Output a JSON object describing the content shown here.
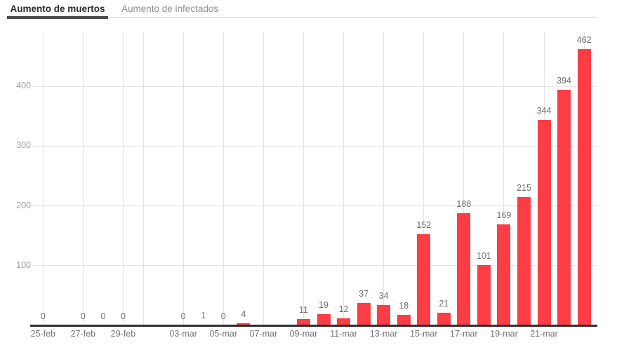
{
  "tabs": [
    {
      "label": "Aumento de muertos",
      "active": true
    },
    {
      "label": "Aumento de infectados",
      "active": false
    }
  ],
  "chart_data": {
    "type": "bar",
    "title": "Aumento de muertos",
    "xlabel": "",
    "ylabel": "",
    "x": [
      "25-feb",
      "27-feb",
      "28-feb",
      "29-feb",
      "03-mar",
      "04-mar",
      "05-mar",
      "06-mar",
      "09-mar",
      "10-mar",
      "11-mar",
      "12-mar",
      "13-mar",
      "14-mar",
      "15-mar",
      "16-mar",
      "17-mar",
      "18-mar",
      "19-mar",
      "20-mar",
      "21-mar",
      "22-mar",
      "23-mar"
    ],
    "values": [
      0,
      0,
      0,
      0,
      0,
      1,
      0,
      4,
      11,
      19,
      12,
      37,
      34,
      18,
      152,
      21,
      188,
      101,
      169,
      215,
      344,
      394,
      462
    ],
    "x_tick_labels": [
      "25-feb",
      "27-feb",
      "29-feb",
      "03-mar",
      "05-mar",
      "07-mar",
      "09-mar",
      "11-mar",
      "13-mar",
      "15-mar",
      "17-mar",
      "19-mar",
      "21-mar"
    ],
    "unlabeled_gridline_dates": [
      "01-mar",
      "23-mar"
    ],
    "y_ticks": [
      100,
      200,
      300,
      400
    ],
    "ylim": [
      0,
      490
    ],
    "grid": true,
    "legend": "none",
    "value_labels": true
  },
  "colors": {
    "bar": "#fc3d45",
    "grid": "#e4e4e4",
    "axis_line": "#2e2e2e",
    "value_label": "#6e6e6e",
    "x_tick_label": "#737373",
    "y_tick_label": "#9c9c9c",
    "tab_active_text": "#2a2a2a",
    "tab_inactive_text": "#8f8f8f",
    "tab_underline": "#4a4a4a",
    "tab_border": "#cccccc",
    "background": "#ffffff"
  }
}
